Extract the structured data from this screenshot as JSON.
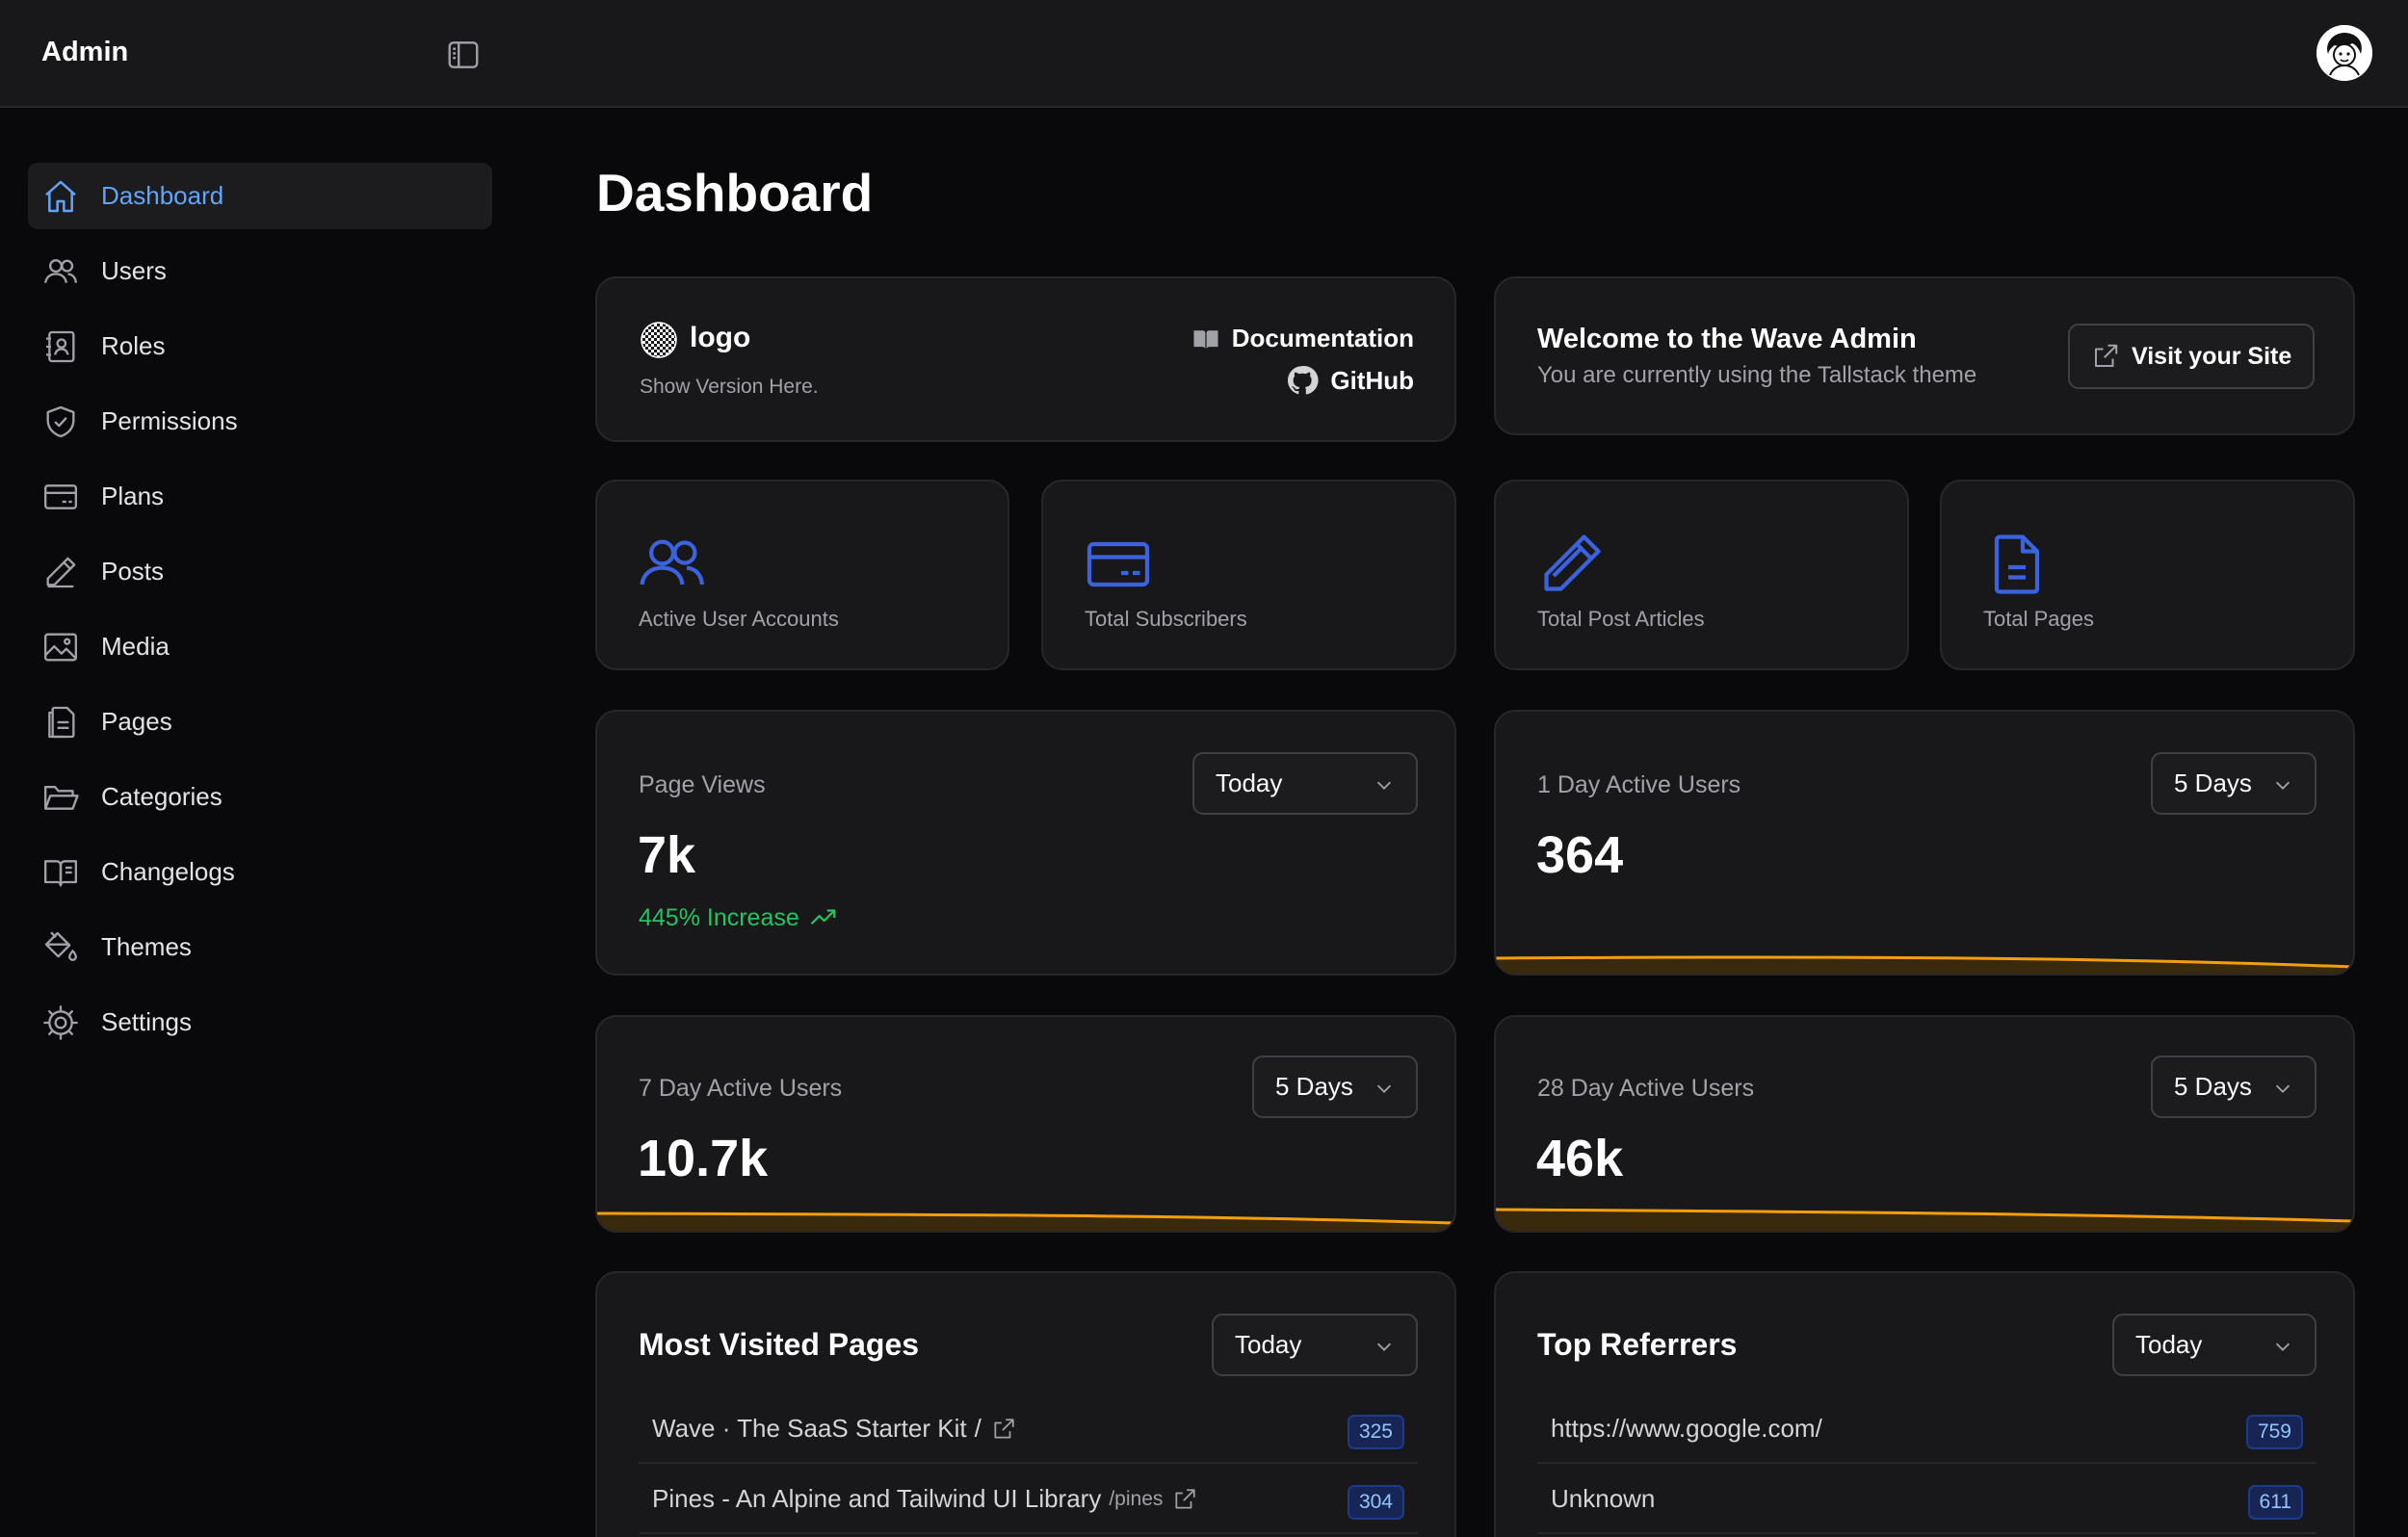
{
  "header": {
    "brand": "Admin"
  },
  "sidebar": {
    "items": [
      {
        "label": "Dashboard",
        "icon": "home-icon",
        "active": true
      },
      {
        "label": "Users",
        "icon": "users-icon"
      },
      {
        "label": "Roles",
        "icon": "roles-icon"
      },
      {
        "label": "Permissions",
        "icon": "shield-icon"
      },
      {
        "label": "Plans",
        "icon": "credit-card-icon"
      },
      {
        "label": "Posts",
        "icon": "pencil-icon"
      },
      {
        "label": "Media",
        "icon": "image-icon"
      },
      {
        "label": "Pages",
        "icon": "pages-icon"
      },
      {
        "label": "Categories",
        "icon": "folder-icon"
      },
      {
        "label": "Changelogs",
        "icon": "book-icon"
      },
      {
        "label": "Themes",
        "icon": "paint-bucket-icon"
      },
      {
        "label": "Settings",
        "icon": "gear-icon"
      }
    ]
  },
  "main": {
    "title": "Dashboard",
    "info_card": {
      "logo_text": "logo",
      "version_text": "Show Version Here.",
      "documentation_label": "Documentation",
      "github_label": "GitHub"
    },
    "welcome_card": {
      "title": "Welcome to the Wave Admin",
      "subtitle": "You are currently using the Tallstack theme",
      "visit_label": "Visit your Site"
    },
    "stat_cards": [
      {
        "label": "Active User Accounts",
        "icon": "users-icon"
      },
      {
        "label": "Total Subscribers",
        "icon": "credit-card-icon"
      },
      {
        "label": "Total Post Articles",
        "icon": "pencil-icon"
      },
      {
        "label": "Total Pages",
        "icon": "document-icon"
      }
    ],
    "metrics": {
      "page_views": {
        "label": "Page Views",
        "value": "7k",
        "range": "Today",
        "change": "445% Increase"
      },
      "one_day": {
        "label": "1 Day Active Users",
        "value": "364",
        "range": "5 Days"
      },
      "seven_day": {
        "label": "7 Day Active Users",
        "value": "10.7k",
        "range": "5 Days"
      },
      "twenty_eight_day": {
        "label": "28 Day Active Users",
        "value": "46k",
        "range": "5 Days"
      }
    },
    "most_visited": {
      "title": "Most Visited Pages",
      "range": "Today",
      "rows": [
        {
          "title": "Wave · The SaaS Starter Kit",
          "path": "/",
          "count": "325"
        },
        {
          "title": "Pines - An Alpine and Tailwind UI Library",
          "path": "/pines",
          "count": "304"
        }
      ]
    },
    "top_referrers": {
      "title": "Top Referrers",
      "range": "Today",
      "rows": [
        {
          "url": "https://www.google.com/",
          "count": "759"
        },
        {
          "url": "Unknown",
          "count": "611"
        }
      ]
    }
  },
  "colors": {
    "accent_blue": "#60a5fa",
    "icon_blue": "#3b63e0",
    "success_green": "#22c55e",
    "sparkline_orange": "#f59e0b",
    "background": "#09090b",
    "card": "#18181b"
  }
}
